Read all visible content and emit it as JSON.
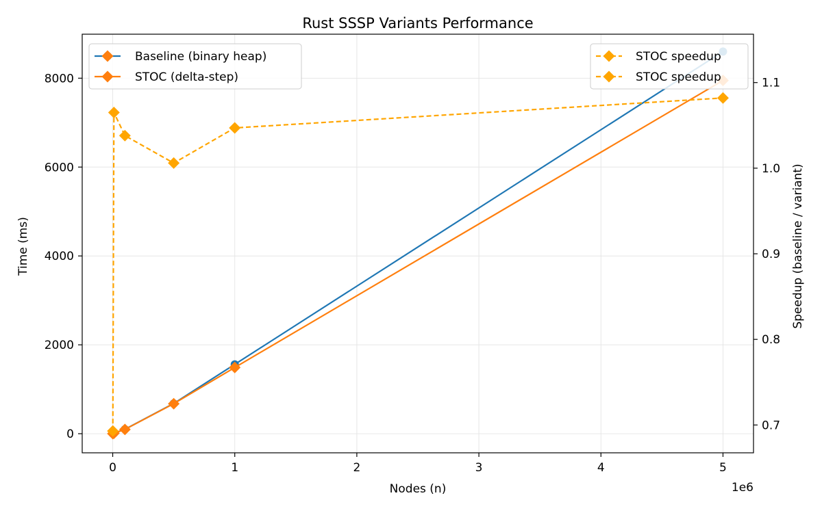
{
  "chart_data": {
    "type": "line",
    "title": "Rust SSSP Variants Performance",
    "xlabel": "Nodes (n)",
    "ylabel": "Time (ms)",
    "y2label": "Speedup (baseline / variant)",
    "x_offset_label": "1e6",
    "xlim": [
      -250000,
      5250000
    ],
    "ylim": [
      -430,
      8990
    ],
    "y2lim": [
      0.6675,
      1.1565
    ],
    "x_ticks": [
      0,
      1000000,
      2000000,
      3000000,
      4000000,
      5000000
    ],
    "x_tick_labels": [
      "0",
      "1",
      "2",
      "3",
      "4",
      "5"
    ],
    "y_ticks": [
      0,
      2000,
      4000,
      6000,
      8000
    ],
    "y_tick_labels": [
      "0",
      "2000",
      "4000",
      "6000",
      "8000"
    ],
    "y2_ticks": [
      0.7,
      0.8,
      0.9,
      1.0,
      1.1
    ],
    "y2_tick_labels": [
      "0.7",
      "0.8",
      "0.9",
      "1.0",
      "1.1"
    ],
    "grid": true,
    "series": [
      {
        "name": "Baseline (binary heap)",
        "axis": "left",
        "color": "#1f77b4",
        "marker": "circle",
        "dash": "solid",
        "x": [
          1000,
          10000,
          100000,
          500000,
          1000000,
          5000000
        ],
        "values": [
          1,
          10,
          100,
          680,
          1560,
          8600
        ]
      },
      {
        "name": "STOC (delta-step)",
        "axis": "left",
        "color": "#ff7f0e",
        "marker": "diamond",
        "dash": "solid",
        "x": [
          1000,
          10000,
          100000,
          500000,
          1000000,
          5000000
        ],
        "values": [
          1,
          10,
          96,
          675,
          1490,
          7950
        ]
      },
      {
        "name": "STOC speedup",
        "axis": "right",
        "color": "#ffa500",
        "marker": "diamond",
        "dash": "dashed",
        "x": [
          1000,
          10000,
          100000,
          500000,
          1000000,
          5000000
        ],
        "values": [
          0.693,
          1.065,
          1.038,
          1.006,
          1.047,
          1.082
        ]
      }
    ],
    "legend_left": {
      "placement": "upper-left",
      "entries": [
        "Baseline (binary heap)",
        "STOC (delta-step)"
      ]
    },
    "legend_right": {
      "placement": "upper-right",
      "entries": [
        "STOC speedup",
        "STOC speedup"
      ]
    }
  }
}
